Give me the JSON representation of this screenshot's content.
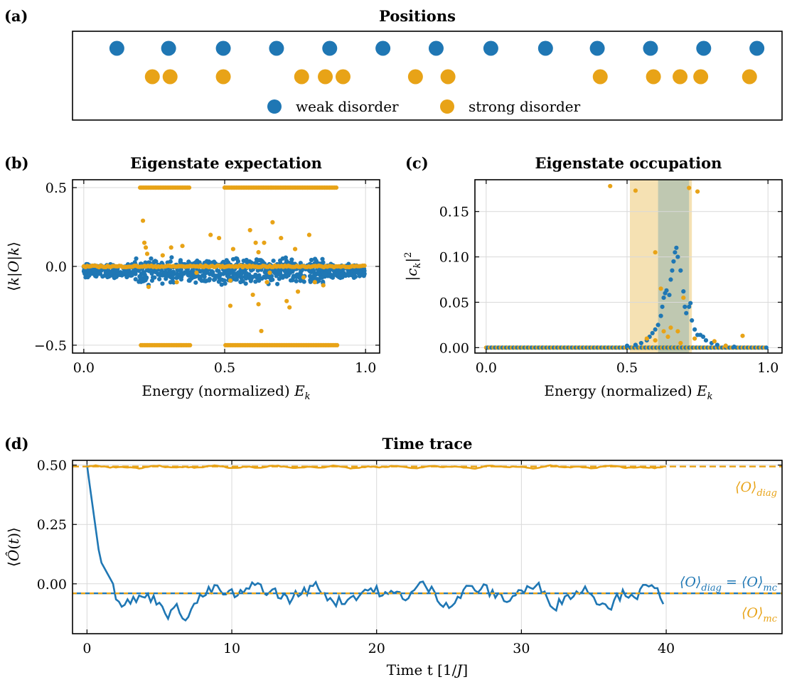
{
  "colors": {
    "weak": "#1f77b4",
    "strong": "#e8a317",
    "shade_strong": "#f3dca6",
    "shade_weak": "#b5c3b0",
    "grid": "#d9d9d9"
  },
  "chart_data": [
    {
      "id": "a",
      "type": "scatter",
      "panel_label": "(a)",
      "title": "Positions",
      "legend": [
        "weak disorder",
        "strong disorder"
      ],
      "legend_position": "bottom-center",
      "series": [
        {
          "name": "weak disorder",
          "x": [
            0.15,
            0.325,
            0.51,
            0.69,
            0.87,
            1.05,
            1.23,
            1.415,
            1.6,
            1.775,
            1.955,
            2.135,
            2.315
          ]
        },
        {
          "name": "strong disorder",
          "x": [
            0.27,
            0.33,
            0.51,
            0.775,
            0.855,
            0.915,
            1.16,
            1.27,
            1.785,
            1.965,
            2.055,
            2.125,
            2.29
          ]
        }
      ],
      "xlim": [
        0,
        2.4
      ]
    },
    {
      "id": "b",
      "type": "scatter",
      "panel_label": "(b)",
      "title": "Eigenstate expectation",
      "xlabel": "Energy (normalized) E_k",
      "ylabel": "⟨k|O|k⟩",
      "xlim": [
        -0.04,
        1.05
      ],
      "ylim": [
        -0.55,
        0.55
      ],
      "xticks": [
        0.0,
        0.5,
        1.0
      ],
      "xtick_labels": [
        "0.0",
        "0.5",
        "1.0"
      ],
      "yticks": [
        -0.5,
        0.0,
        0.5
      ],
      "ytick_labels": [
        "−0.5",
        "0.0",
        "0.5"
      ],
      "grid": true,
      "series": [
        {
          "name": "weak disorder",
          "band_center": -0.03,
          "band_halfwidth": [
            0.05,
            0.09
          ],
          "x_range": [
            0.0,
            1.0
          ],
          "count": 900
        },
        {
          "name": "strong disorder",
          "x_range": [
            0.0,
            1.0
          ],
          "levels": [
            0.5,
            0.0,
            -0.5
          ],
          "extra_points": [
            [
              0.21,
              0.29
            ],
            [
              0.215,
              0.15
            ],
            [
              0.22,
              0.12
            ],
            [
              0.225,
              0.08
            ],
            [
              0.23,
              -0.13
            ],
            [
              0.28,
              0.07
            ],
            [
              0.31,
              0.12
            ],
            [
              0.33,
              -0.1
            ],
            [
              0.45,
              0.2
            ],
            [
              0.48,
              0.18
            ],
            [
              0.52,
              -0.09
            ],
            [
              0.52,
              -0.25
            ],
            [
              0.53,
              0.11
            ],
            [
              0.59,
              0.23
            ],
            [
              0.6,
              -0.18
            ],
            [
              0.61,
              0.15
            ],
            [
              0.62,
              -0.24
            ],
            [
              0.63,
              -0.41
            ],
            [
              0.64,
              0.15
            ],
            [
              0.65,
              -0.1
            ],
            [
              0.67,
              0.28
            ],
            [
              0.7,
              0.18
            ],
            [
              0.72,
              -0.22
            ],
            [
              0.73,
              -0.26
            ],
            [
              0.75,
              0.11
            ],
            [
              0.76,
              -0.16
            ],
            [
              0.78,
              -0.07
            ],
            [
              0.8,
              0.2
            ],
            [
              0.82,
              -0.1
            ],
            [
              0.85,
              -0.12
            ],
            [
              0.62,
              0.09
            ],
            [
              0.66,
              -0.04
            ],
            [
              0.35,
              0.13
            ],
            [
              0.4,
              -0.04
            ]
          ]
        }
      ]
    },
    {
      "id": "c",
      "type": "scatter",
      "panel_label": "(c)",
      "title": "Eigenstate occupation",
      "xlabel": "Energy (normalized) E_k",
      "ylabel": "|c_k|²",
      "xlim": [
        -0.04,
        1.05
      ],
      "ylim": [
        -0.006,
        0.185
      ],
      "xticks": [
        0.0,
        0.5,
        1.0
      ],
      "xtick_labels": [
        "0.0",
        "0.5",
        "1.0"
      ],
      "yticks": [
        0.0,
        0.05,
        0.1,
        0.15
      ],
      "ytick_labels": [
        "0.00",
        "0.05",
        "0.10",
        "0.15"
      ],
      "grid": true,
      "bands": [
        {
          "series": "strong disorder",
          "x": [
            0.51,
            0.73
          ]
        },
        {
          "series": "weak disorder",
          "x": [
            0.61,
            0.72
          ]
        }
      ],
      "series": [
        {
          "name": "weak disorder",
          "points": [
            [
              0.5,
              0.002
            ],
            [
              0.53,
              0.003
            ],
            [
              0.55,
              0.005
            ],
            [
              0.57,
              0.008
            ],
            [
              0.58,
              0.012
            ],
            [
              0.59,
              0.016
            ],
            [
              0.6,
              0.02
            ],
            [
              0.61,
              0.025
            ],
            [
              0.62,
              0.035
            ],
            [
              0.625,
              0.045
            ],
            [
              0.63,
              0.055
            ],
            [
              0.635,
              0.06
            ],
            [
              0.64,
              0.063
            ],
            [
              0.65,
              0.058
            ],
            [
              0.655,
              0.075
            ],
            [
              0.66,
              0.085
            ],
            [
              0.665,
              0.095
            ],
            [
              0.67,
              0.105
            ],
            [
              0.675,
              0.11
            ],
            [
              0.68,
              0.1
            ],
            [
              0.69,
              0.085
            ],
            [
              0.7,
              0.062
            ],
            [
              0.705,
              0.045
            ],
            [
              0.71,
              0.038
            ],
            [
              0.72,
              0.045
            ],
            [
              0.725,
              0.049
            ],
            [
              0.73,
              0.03
            ],
            [
              0.74,
              0.02
            ],
            [
              0.75,
              0.014
            ],
            [
              0.76,
              0.014
            ],
            [
              0.77,
              0.012
            ],
            [
              0.78,
              0.008
            ],
            [
              0.8,
              0.005
            ],
            [
              0.82,
              0.003
            ],
            [
              0.85,
              0.002
            ],
            [
              0.88,
              0.001
            ]
          ]
        },
        {
          "name": "strong disorder",
          "points": [
            [
              0.44,
              0.178
            ],
            [
              0.53,
              0.173
            ],
            [
              0.6,
              0.105
            ],
            [
              0.62,
              0.065
            ],
            [
              0.63,
              0.018
            ],
            [
              0.645,
              0.012
            ],
            [
              0.72,
              0.176
            ],
            [
              0.75,
              0.172
            ],
            [
              0.7,
              0.055
            ],
            [
              0.68,
              0.018
            ],
            [
              0.74,
              0.01
            ],
            [
              0.81,
              0.007
            ],
            [
              0.91,
              0.013
            ],
            [
              0.57,
              0.01
            ],
            [
              0.655,
              0.022
            ],
            [
              0.6,
              0.008
            ],
            [
              0.85,
              0.002
            ],
            [
              0.69,
              0.005
            ]
          ]
        }
      ]
    },
    {
      "id": "d",
      "type": "line",
      "panel_label": "(d)",
      "title": "Time trace",
      "xlabel": "Time t [1/J]",
      "ylabel": "⟨Ô(t)⟩",
      "xlim": [
        -1,
        48
      ],
      "ylim": [
        -0.21,
        0.52
      ],
      "xticks": [
        0,
        10,
        20,
        30,
        40
      ],
      "xtick_labels": [
        "0",
        "10",
        "20",
        "30",
        "40"
      ],
      "yticks": [
        0.0,
        0.25,
        0.5
      ],
      "ytick_labels": [
        "0.00",
        "0.25",
        "0.50"
      ],
      "grid": true,
      "series": [
        {
          "name": "strong disorder",
          "t_max": 40,
          "mean": 0.492,
          "fluct": 0.006
        },
        {
          "name": "weak disorder",
          "t_max": 40,
          "initial": 0.5,
          "mean": -0.04,
          "fluct": 0.035
        }
      ],
      "hlines": [
        {
          "series": "strong disorder",
          "y": 0.494,
          "style": "dashed"
        },
        {
          "series": "weak disorder",
          "y": -0.04,
          "style": "dashdot"
        }
      ],
      "annotations": [
        {
          "series": "strong disorder",
          "base": "⟨O⟩",
          "sub": "diag",
          "y": 0.41
        },
        {
          "series": "weak disorder",
          "base": "⟨O⟩",
          "sub": "diag",
          "mid": " = ⟨O⟩",
          "sub2": "mc",
          "y": 0.01
        },
        {
          "series": "strong disorder",
          "base": "⟨O⟩",
          "sub": "mc",
          "y": -0.12
        }
      ]
    }
  ]
}
